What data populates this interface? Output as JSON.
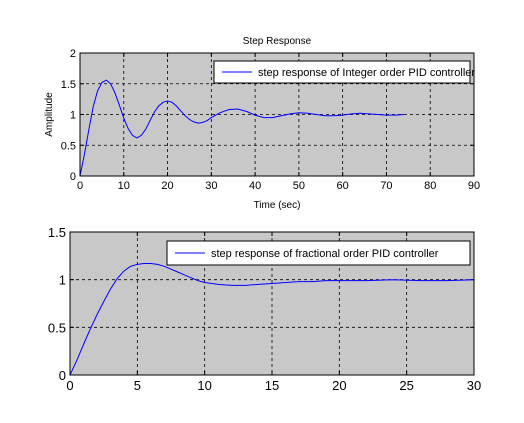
{
  "chart_data": [
    {
      "type": "line",
      "title": "Step Response",
      "xlabel": "Time (sec)",
      "ylabel": "Amplitude",
      "xlim": [
        0,
        90
      ],
      "ylim": [
        0,
        2
      ],
      "xticks": [
        "0",
        "10",
        "20",
        "30",
        "40",
        "50",
        "60",
        "70",
        "80",
        "90"
      ],
      "yticks": [
        "0",
        "0.5",
        "1",
        "1.5",
        "2"
      ],
      "grid": true,
      "legend_position": "top-right",
      "background": "#c8c8c8",
      "series": [
        {
          "name": "step response of Integer order PID controller",
          "color": "#0000ff",
          "x": [
            0,
            1,
            2,
            3,
            4,
            5,
            6,
            7,
            8,
            9,
            10,
            11,
            12,
            13,
            14,
            15,
            16,
            17,
            18,
            19,
            20,
            21,
            22,
            23,
            24,
            25,
            26,
            27,
            28,
            29,
            30,
            32,
            34,
            36,
            38,
            40,
            42,
            44,
            46,
            48,
            50,
            52,
            54,
            56,
            58,
            60,
            62,
            64,
            66,
            68,
            70,
            72,
            74
          ],
          "y": [
            0,
            0.35,
            0.75,
            1.12,
            1.38,
            1.52,
            1.56,
            1.5,
            1.35,
            1.15,
            0.94,
            0.77,
            0.66,
            0.62,
            0.66,
            0.76,
            0.9,
            1.04,
            1.14,
            1.2,
            1.22,
            1.2,
            1.14,
            1.06,
            0.98,
            0.92,
            0.88,
            0.86,
            0.87,
            0.9,
            0.95,
            1.03,
            1.08,
            1.09,
            1.05,
            0.99,
            0.95,
            0.95,
            0.98,
            1.01,
            1.03,
            1.02,
            1.0,
            0.98,
            0.98,
            0.99,
            1.01,
            1.02,
            1.01,
            1.0,
            0.99,
            0.99,
            1.0
          ]
        }
      ]
    },
    {
      "type": "line",
      "title": "",
      "xlabel": "",
      "ylabel": "",
      "xlim": [
        0,
        30
      ],
      "ylim": [
        0,
        1.5
      ],
      "xticks": [
        "0",
        "5",
        "10",
        "15",
        "20",
        "25",
        "30"
      ],
      "yticks": [
        "0",
        "0.5",
        "1",
        "1.5"
      ],
      "grid": true,
      "legend_position": "top-right",
      "background": "#c8c8c8",
      "series": [
        {
          "name": "step response of fractional order PID controller",
          "color": "#0000ff",
          "x": [
            0,
            0.5,
            1,
            1.5,
            2,
            2.5,
            3,
            3.5,
            4,
            4.5,
            5,
            5.5,
            6,
            6.5,
            7,
            7.5,
            8,
            8.5,
            9,
            9.5,
            10,
            11,
            12,
            13,
            14,
            15,
            16,
            17,
            18,
            19,
            20,
            22,
            24,
            26,
            28,
            30
          ],
          "y": [
            0,
            0.15,
            0.32,
            0.48,
            0.63,
            0.77,
            0.9,
            1.01,
            1.09,
            1.14,
            1.16,
            1.17,
            1.17,
            1.16,
            1.14,
            1.11,
            1.08,
            1.05,
            1.02,
            0.99,
            0.97,
            0.95,
            0.94,
            0.94,
            0.95,
            0.96,
            0.97,
            0.98,
            0.98,
            0.99,
            0.99,
            0.99,
            1.0,
            0.99,
            0.99,
            1.0
          ]
        }
      ]
    }
  ]
}
